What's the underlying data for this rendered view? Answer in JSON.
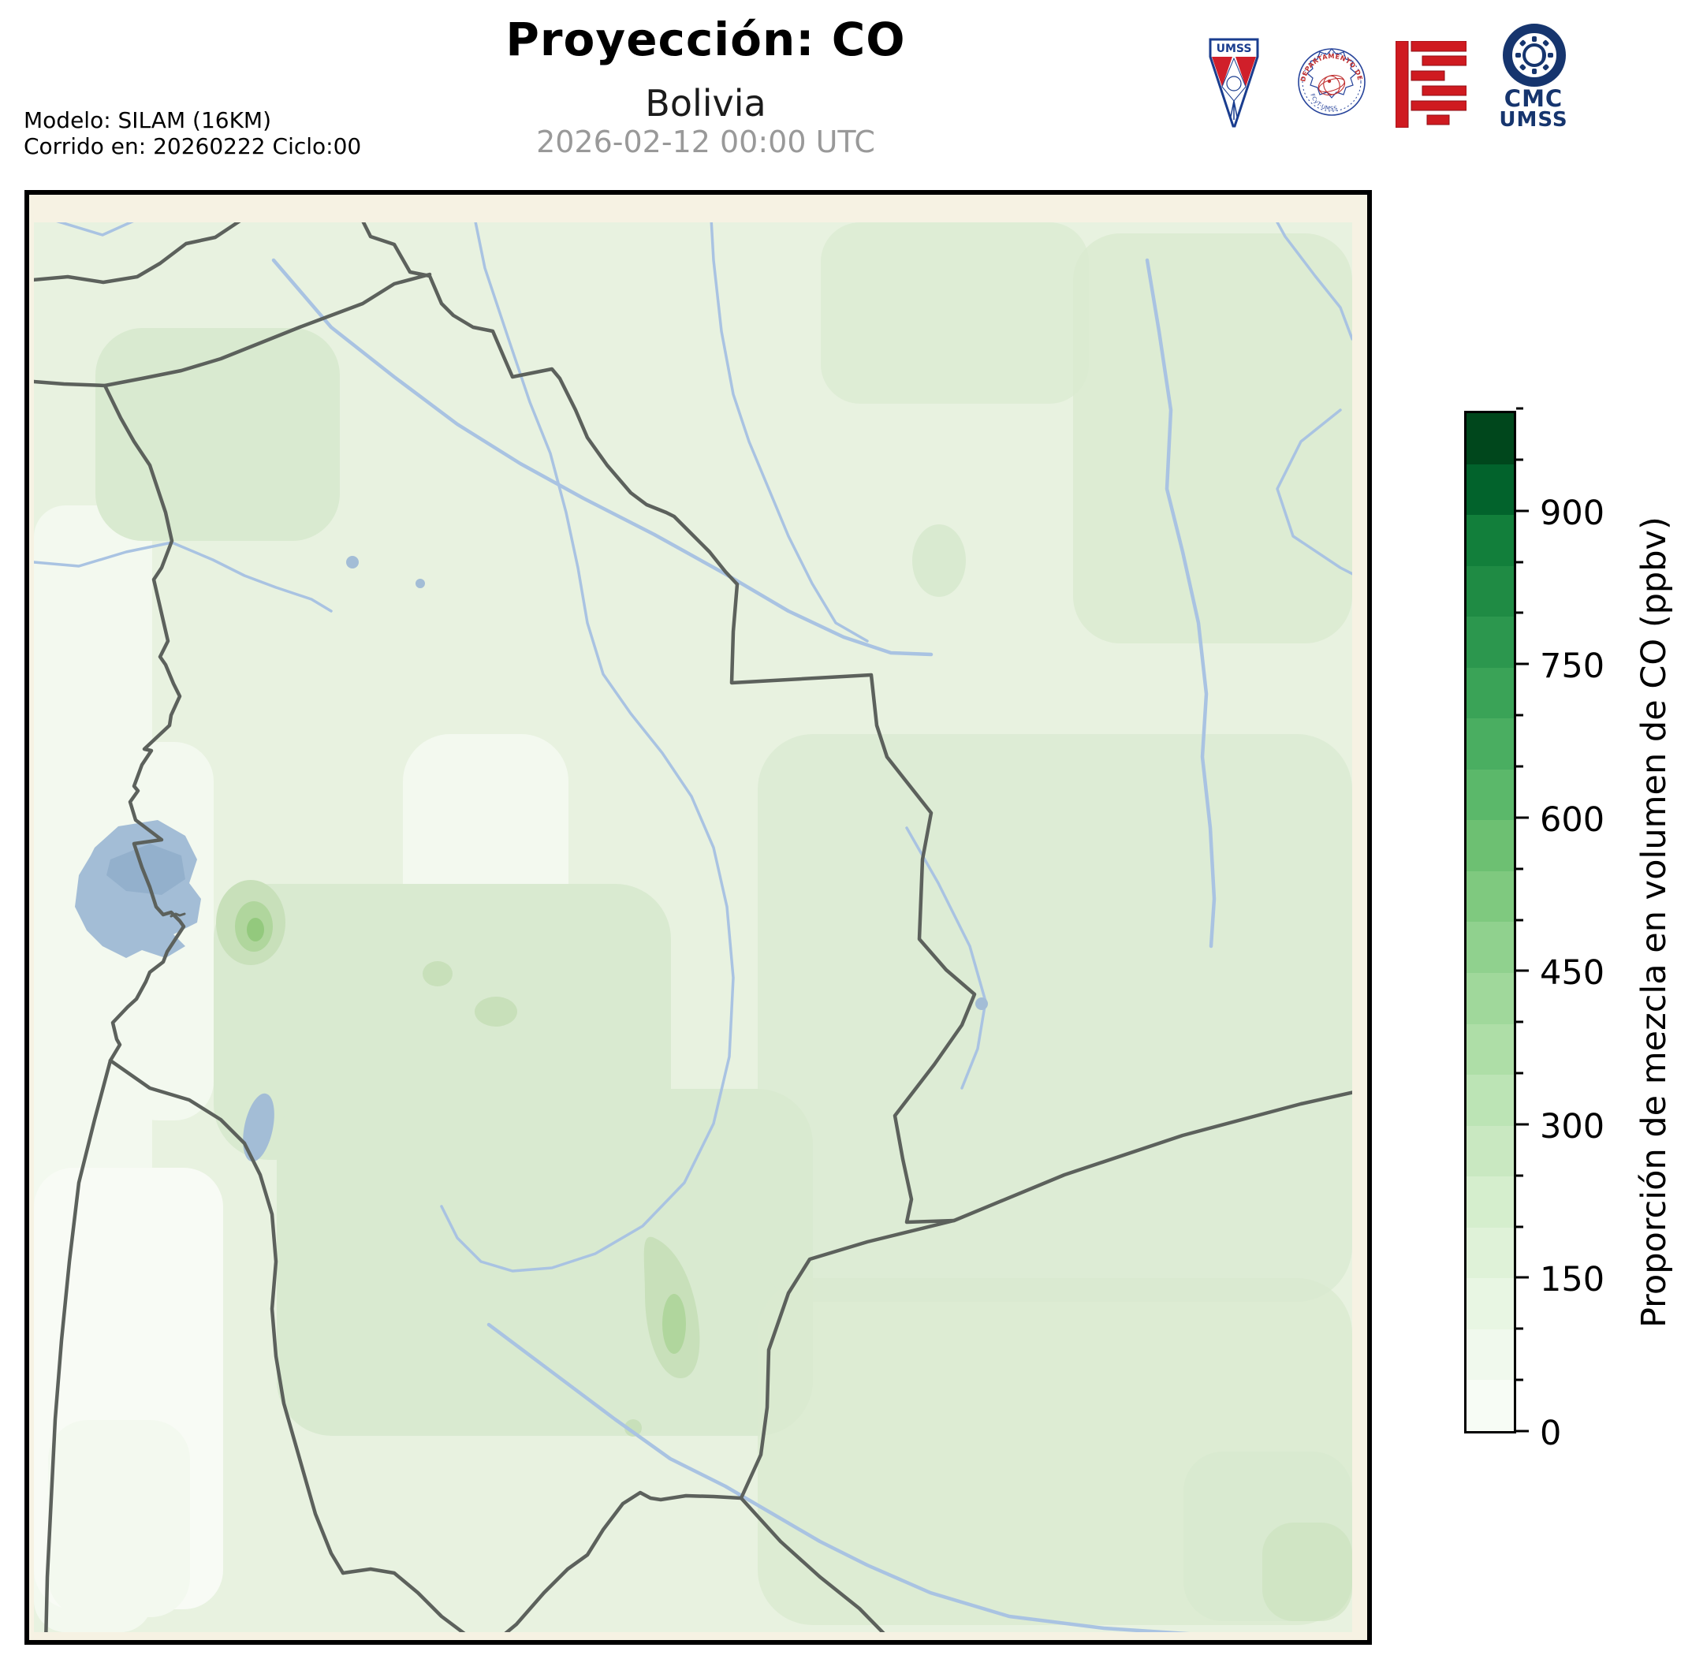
{
  "header": {
    "title": "Proyección: CO",
    "subtitle": "Bolivia",
    "datetime": "2026-02-12 00:00 UTC",
    "model_line1": "Modelo: SILAM (16KM)",
    "model_line2": "Corrido en: 20260222 Ciclo:00"
  },
  "logos": {
    "umss_pennant": {
      "text": "UMSS"
    },
    "fisica_seal": {
      "text_top": "DEPARTAMENTO DE FÍSICA",
      "text_bottom": "FCyT-UMSS"
    },
    "fcyt_mark": {
      "name": "fcyt-red-mark"
    },
    "cmc": {
      "line1": "CMC",
      "line2": "UMSS"
    }
  },
  "colorbar": {
    "label": "Proporción de mezcla en volumen de CO (ppbv)",
    "min": 0,
    "max": 1000,
    "major_ticks": [
      0,
      150,
      300,
      450,
      600,
      750,
      900
    ],
    "minor_step": 50,
    "n_segments": 20,
    "colors": [
      "#f7fcf5",
      "#f0f9ed",
      "#e8f6e3",
      "#dff2d8",
      "#d5eecd",
      "#c9e8c1",
      "#bce4b5",
      "#aedea7",
      "#a0d89b",
      "#90d18e",
      "#7fc97f",
      "#6dc072",
      "#5bb86a",
      "#4aae61",
      "#3aa357",
      "#2c974e",
      "#1f8b44",
      "#127f3b",
      "#02632c",
      "#00471c"
    ]
  },
  "theme": {
    "cream": "#f6f2e3",
    "green1": "#e8f2e0",
    "river": "#a9c3e2",
    "lake": "#a3bdd6",
    "border": "#5c615c",
    "graytext": "#999999",
    "navy": "#16356e",
    "red": "#cf1a20"
  },
  "chart_data": {
    "type": "heatmap",
    "title": "Proyección: CO",
    "subtitle": "Bolivia",
    "timestamp": "2026-02-12 00:00 UTC",
    "variable": "Proporción de mezcla en volumen de CO (ppbv)",
    "model": "SILAM (16KM)",
    "run": "20260222 Ciclo:00",
    "colormap": "Greens",
    "scale_range": [
      0,
      1000
    ],
    "scale_major_ticks": [
      0,
      150,
      300,
      450,
      600,
      750,
      900
    ],
    "map_region": "Bolivia with department and neighbouring-country borders, rivers, Lake Titicaca and Lake Poopó",
    "depicted_value_summary": "Mostly 50-300 ppbv light greens across the country; slightly higher patches (300-450 ppbv) near the Altiplano east of Lake Titicaca, central lowlands and the south-central valleys; lowest values (<100 ppbv) along the western Altiplano and south-west"
  }
}
